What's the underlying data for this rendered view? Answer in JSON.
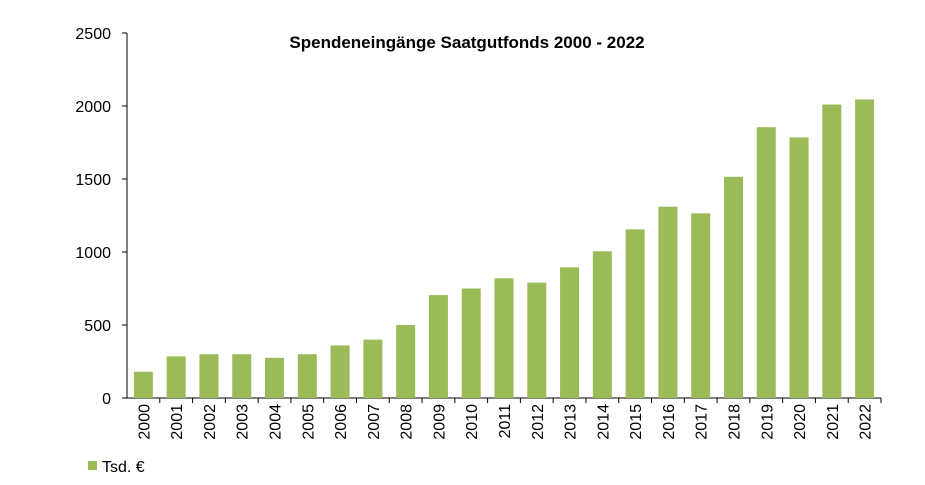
{
  "chart_data": {
    "type": "bar",
    "title": "Spendeneingänge Saatgutfonds 2000 - 2022",
    "categories": [
      "2000",
      "2001",
      "2002",
      "2003",
      "2004",
      "2005",
      "2006",
      "2007",
      "2008",
      "2009",
      "2010",
      "2011",
      "2012",
      "2013",
      "2014",
      "2015",
      "2016",
      "2017",
      "2018",
      "2019",
      "2020",
      "2021",
      "2022"
    ],
    "series": [
      {
        "name": "Tsd. €",
        "color": "#9BBB59",
        "values": [
          180,
          285,
          300,
          300,
          275,
          300,
          360,
          400,
          500,
          705,
          750,
          820,
          790,
          895,
          1005,
          1155,
          1310,
          1265,
          1515,
          1855,
          1785,
          2010,
          2045
        ]
      }
    ],
    "yticks": [
      0,
      500,
      1000,
      1500,
      2000,
      2500
    ],
    "ylim": [
      0,
      2500
    ],
    "xlabel": "",
    "ylabel": "",
    "grid": false,
    "legend": "bottom-left"
  }
}
